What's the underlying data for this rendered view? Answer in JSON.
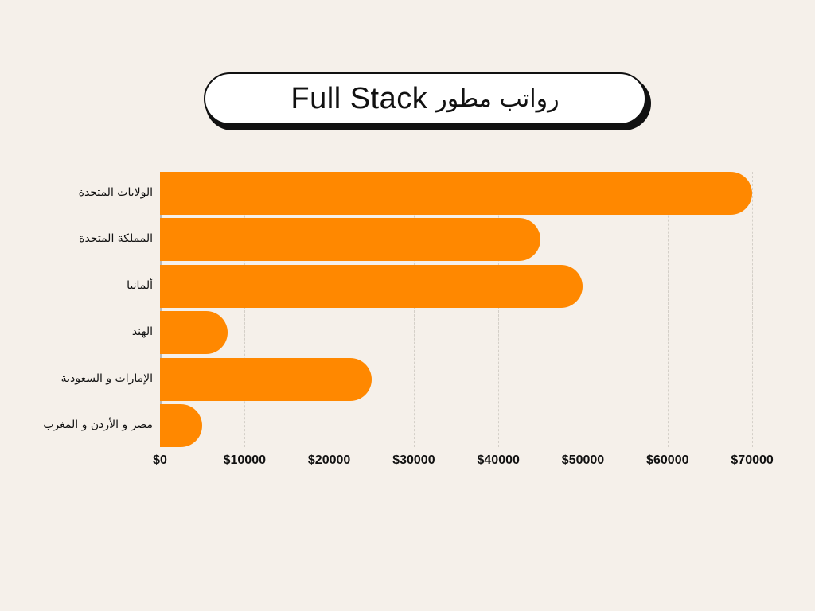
{
  "title": {
    "english": "Full Stack",
    "arabic": "رواتب مطور"
  },
  "colors": {
    "bar": "#ff8800",
    "background": "#f5f0ea",
    "text": "#111111"
  },
  "chart_data": {
    "type": "bar",
    "orientation": "horizontal",
    "title": "رواتب مطور Full Stack",
    "categories": [
      "الولايات المتحدة",
      "المملكة المتحدة",
      "ألمانيا",
      "الهند",
      "الإمارات و السعودية",
      "مصر و الأردن و المغرب"
    ],
    "values": [
      70000,
      45000,
      50000,
      8000,
      25000,
      5000
    ],
    "xlabel": "",
    "ylabel": "",
    "xlim": [
      0,
      70000
    ],
    "x_ticks": [
      "$0",
      "$10000",
      "$20000",
      "$30000",
      "$40000",
      "$50000",
      "$60000",
      "$70000"
    ],
    "grid": true,
    "legend": null
  }
}
